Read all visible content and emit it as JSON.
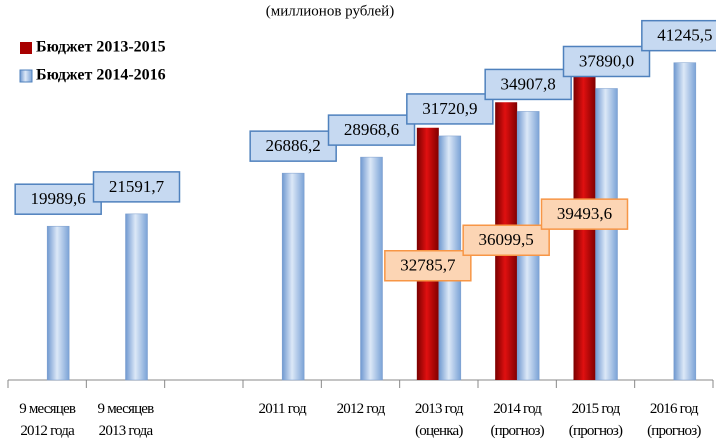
{
  "chart_data": {
    "type": "bar",
    "title": "(миллионов рублей)",
    "categories": [
      "9 месяцев 2012 года",
      "9 месяцев 2013 года",
      null,
      "2011 год",
      "2012 год",
      "2013 год (оценка)",
      "2014 год (прогноз)",
      "2015 год (прогноз)",
      "2016 год (прогноз)"
    ],
    "series": [
      {
        "name": "Бюджет 2013-2015",
        "color": "#a80000",
        "values": [
          null,
          null,
          null,
          null,
          null,
          32785.7,
          36099.5,
          39493.6,
          null
        ],
        "value_labels": [
          null,
          null,
          null,
          null,
          null,
          "32785,7",
          "36099,5",
          "39493,6",
          null
        ]
      },
      {
        "name": "Бюджет 2014-2016",
        "color": "#8eb4e3",
        "values": [
          19989.6,
          21591.7,
          null,
          26886.2,
          28968.6,
          31720.9,
          34907.8,
          37890.0,
          41245.5
        ],
        "value_labels": [
          "19989,6",
          "21591,7",
          null,
          "26886,2",
          "28968,6",
          "31720,9",
          "34907,8",
          "37890,0",
          "41245,5"
        ]
      }
    ],
    "ylim": [
      0,
      49000
    ],
    "legend": "top-left"
  }
}
